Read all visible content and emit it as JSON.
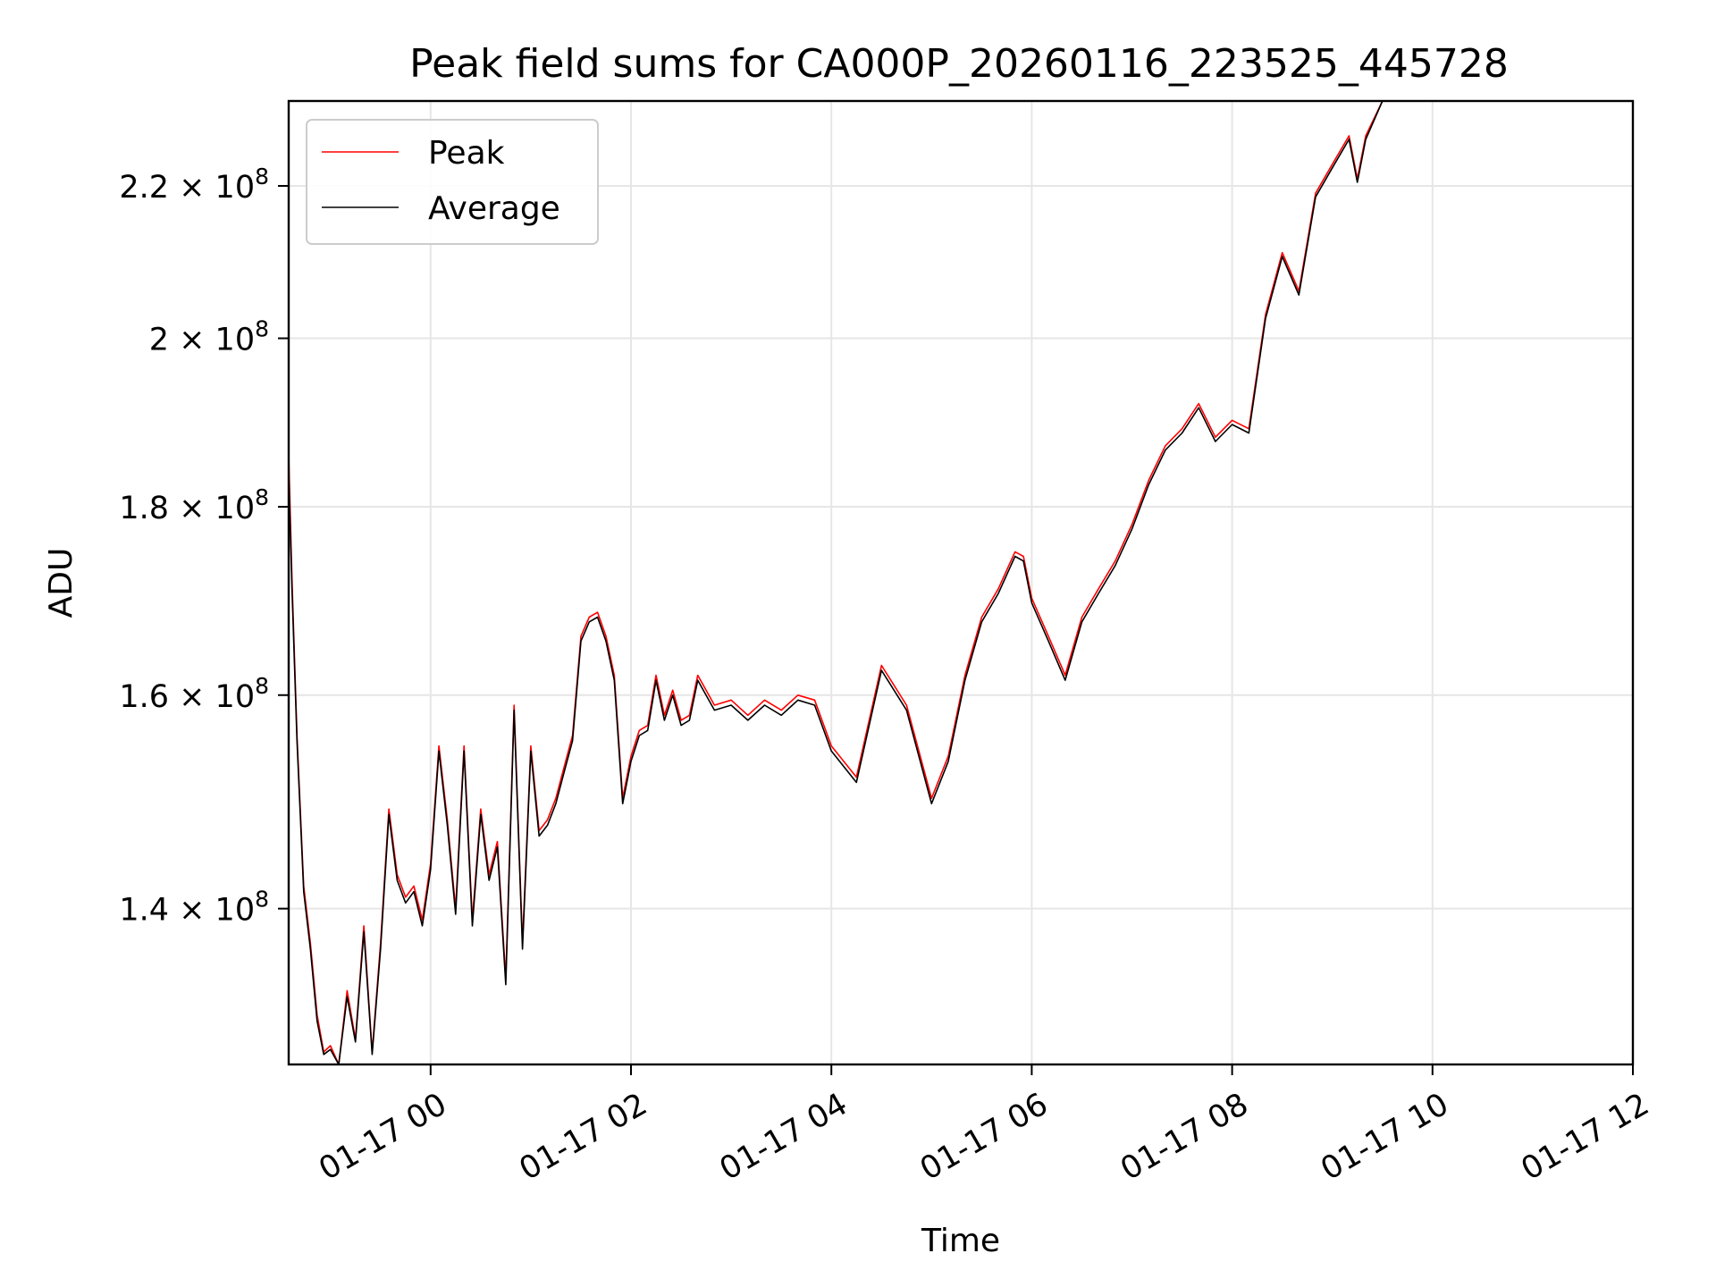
{
  "chart_data": {
    "type": "line",
    "title": "Peak field sums for CA000P_20260116_223525_445728",
    "xlabel": "Time",
    "ylabel": "ADU",
    "y_scale": "log",
    "xlim": [
      "2026-01-16 22:35",
      "2026-01-17 12:00"
    ],
    "ylim": [
      127000000,
      232000000
    ],
    "grid": true,
    "legend": "top-left",
    "x_ticks": [
      {
        "t": "2026-01-17 00:00",
        "label": "01-17 00"
      },
      {
        "t": "2026-01-17 02:00",
        "label": "01-17 02"
      },
      {
        "t": "2026-01-17 04:00",
        "label": "01-17 04"
      },
      {
        "t": "2026-01-17 06:00",
        "label": "01-17 06"
      },
      {
        "t": "2026-01-17 08:00",
        "label": "01-17 08"
      },
      {
        "t": "2026-01-17 10:00",
        "label": "01-17 10"
      },
      {
        "t": "2026-01-17 12:00",
        "label": "01-17 12"
      }
    ],
    "y_ticks": [
      {
        "v": 140000000,
        "mant": "1.4",
        "exp": "8"
      },
      {
        "v": 160000000,
        "mant": "1.6",
        "exp": "8"
      },
      {
        "v": 180000000,
        "mant": "1.8",
        "exp": "8"
      },
      {
        "v": 200000000,
        "mant": "2",
        "exp": "8"
      },
      {
        "v": 220000000,
        "mant": "2.2",
        "exp": "8"
      }
    ],
    "series": [
      {
        "name": "Peak",
        "color": "#ff0000",
        "x": [
          "2026-01-16 22:35",
          "2026-01-16 22:37",
          "2026-01-16 22:40",
          "2026-01-16 22:44",
          "2026-01-16 22:48",
          "2026-01-16 22:52",
          "2026-01-16 22:56",
          "2026-01-16 23:00",
          "2026-01-16 23:05",
          "2026-01-16 23:10",
          "2026-01-16 23:15",
          "2026-01-16 23:20",
          "2026-01-16 23:25",
          "2026-01-16 23:30",
          "2026-01-16 23:35",
          "2026-01-16 23:40",
          "2026-01-16 23:45",
          "2026-01-16 23:50",
          "2026-01-16 23:55",
          "2026-01-17 00:00",
          "2026-01-17 00:05",
          "2026-01-17 00:10",
          "2026-01-17 00:15",
          "2026-01-17 00:20",
          "2026-01-17 00:25",
          "2026-01-17 00:30",
          "2026-01-17 00:35",
          "2026-01-17 00:40",
          "2026-01-17 00:45",
          "2026-01-17 00:50",
          "2026-01-17 00:55",
          "2026-01-17 01:00",
          "2026-01-17 01:05",
          "2026-01-17 01:10",
          "2026-01-17 01:15",
          "2026-01-17 01:20",
          "2026-01-17 01:25",
          "2026-01-17 01:30",
          "2026-01-17 01:35",
          "2026-01-17 01:40",
          "2026-01-17 01:45",
          "2026-01-17 01:50",
          "2026-01-17 01:55",
          "2026-01-17 02:00",
          "2026-01-17 02:05",
          "2026-01-17 02:10",
          "2026-01-17 02:15",
          "2026-01-17 02:20",
          "2026-01-17 02:25",
          "2026-01-17 02:30",
          "2026-01-17 02:35",
          "2026-01-17 02:40",
          "2026-01-17 02:50",
          "2026-01-17 03:00",
          "2026-01-17 03:10",
          "2026-01-17 03:20",
          "2026-01-17 03:30",
          "2026-01-17 03:40",
          "2026-01-17 03:50",
          "2026-01-17 04:00",
          "2026-01-17 04:15",
          "2026-01-17 04:30",
          "2026-01-17 04:45",
          "2026-01-17 05:00",
          "2026-01-17 05:10",
          "2026-01-17 05:20",
          "2026-01-17 05:30",
          "2026-01-17 05:40",
          "2026-01-17 05:50",
          "2026-01-17 05:55",
          "2026-01-17 06:00",
          "2026-01-17 06:10",
          "2026-01-17 06:20",
          "2026-01-17 06:30",
          "2026-01-17 06:40",
          "2026-01-17 06:50",
          "2026-01-17 07:00",
          "2026-01-17 07:10",
          "2026-01-17 07:20",
          "2026-01-17 07:30",
          "2026-01-17 07:40",
          "2026-01-17 07:50",
          "2026-01-17 08:00",
          "2026-01-17 08:10",
          "2026-01-17 08:20",
          "2026-01-17 08:30",
          "2026-01-17 08:40",
          "2026-01-17 08:50",
          "2026-01-17 09:00",
          "2026-01-17 09:10",
          "2026-01-17 09:15",
          "2026-01-17 09:20",
          "2026-01-17 09:30"
        ],
        "values": [
          186000000,
          172000000,
          156000000,
          142000000,
          137000000,
          131000000,
          128000000,
          128500000,
          127000000,
          133000000,
          129000000,
          138500000,
          128000000,
          137000000,
          149000000,
          143000000,
          141000000,
          142000000,
          139000000,
          144000000,
          155000000,
          148000000,
          140000000,
          155000000,
          139000000,
          149000000,
          143000000,
          146000000,
          134000000,
          159000000,
          137000000,
          155000000,
          147000000,
          148000000,
          150000000,
          153000000,
          156000000,
          166000000,
          168000000,
          168500000,
          166000000,
          162000000,
          150000000,
          154000000,
          156500000,
          157000000,
          162000000,
          158000000,
          160500000,
          157500000,
          158000000,
          162000000,
          159000000,
          159500000,
          158000000,
          159500000,
          158500000,
          160000000,
          159500000,
          155000000,
          152000000,
          163000000,
          159000000,
          150000000,
          154000000,
          162000000,
          168000000,
          171000000,
          175000000,
          174500000,
          170000000,
          166000000,
          162000000,
          168000000,
          171000000,
          174000000,
          178000000,
          183000000,
          187000000,
          189000000,
          192000000,
          188000000,
          190000000,
          189000000,
          203000000,
          211000000,
          206000000,
          219000000,
          223000000,
          227000000,
          221000000,
          227000000,
          232000000
        ]
      },
      {
        "name": "Average",
        "color": "#000000",
        "x": [
          "2026-01-16 22:35",
          "2026-01-16 22:37",
          "2026-01-16 22:40",
          "2026-01-16 22:44",
          "2026-01-16 22:48",
          "2026-01-16 22:52",
          "2026-01-16 22:56",
          "2026-01-16 23:00",
          "2026-01-16 23:05",
          "2026-01-16 23:10",
          "2026-01-16 23:15",
          "2026-01-16 23:20",
          "2026-01-16 23:25",
          "2026-01-16 23:30",
          "2026-01-16 23:35",
          "2026-01-16 23:40",
          "2026-01-16 23:45",
          "2026-01-16 23:50",
          "2026-01-16 23:55",
          "2026-01-17 00:00",
          "2026-01-17 00:05",
          "2026-01-17 00:10",
          "2026-01-17 00:15",
          "2026-01-17 00:20",
          "2026-01-17 00:25",
          "2026-01-17 00:30",
          "2026-01-17 00:35",
          "2026-01-17 00:40",
          "2026-01-17 00:45",
          "2026-01-17 00:50",
          "2026-01-17 00:55",
          "2026-01-17 01:00",
          "2026-01-17 01:05",
          "2026-01-17 01:10",
          "2026-01-17 01:15",
          "2026-01-17 01:20",
          "2026-01-17 01:25",
          "2026-01-17 01:30",
          "2026-01-17 01:35",
          "2026-01-17 01:40",
          "2026-01-17 01:45",
          "2026-01-17 01:50",
          "2026-01-17 01:55",
          "2026-01-17 02:00",
          "2026-01-17 02:05",
          "2026-01-17 02:10",
          "2026-01-17 02:15",
          "2026-01-17 02:20",
          "2026-01-17 02:25",
          "2026-01-17 02:30",
          "2026-01-17 02:35",
          "2026-01-17 02:40",
          "2026-01-17 02:50",
          "2026-01-17 03:00",
          "2026-01-17 03:10",
          "2026-01-17 03:20",
          "2026-01-17 03:30",
          "2026-01-17 03:40",
          "2026-01-17 03:50",
          "2026-01-17 04:00",
          "2026-01-17 04:15",
          "2026-01-17 04:30",
          "2026-01-17 04:45",
          "2026-01-17 05:00",
          "2026-01-17 05:10",
          "2026-01-17 05:20",
          "2026-01-17 05:30",
          "2026-01-17 05:40",
          "2026-01-17 05:50",
          "2026-01-17 05:55",
          "2026-01-17 06:00",
          "2026-01-17 06:10",
          "2026-01-17 06:20",
          "2026-01-17 06:30",
          "2026-01-17 06:40",
          "2026-01-17 06:50",
          "2026-01-17 07:00",
          "2026-01-17 07:10",
          "2026-01-17 07:20",
          "2026-01-17 07:30",
          "2026-01-17 07:40",
          "2026-01-17 07:50",
          "2026-01-17 08:00",
          "2026-01-17 08:10",
          "2026-01-17 08:20",
          "2026-01-17 08:30",
          "2026-01-17 08:40",
          "2026-01-17 08:50",
          "2026-01-17 09:00",
          "2026-01-17 09:10",
          "2026-01-17 09:15",
          "2026-01-17 09:20",
          "2026-01-17 09:30"
        ],
        "values": [
          184000000,
          171000000,
          155500000,
          141500000,
          136500000,
          130500000,
          127800000,
          128200000,
          127000000,
          132500000,
          128800000,
          138000000,
          127800000,
          136500000,
          148500000,
          142500000,
          140500000,
          141500000,
          138500000,
          143500000,
          154500000,
          147500000,
          139500000,
          154500000,
          138500000,
          148500000,
          142500000,
          145500000,
          133500000,
          158500000,
          136500000,
          154500000,
          146500000,
          147500000,
          149500000,
          152500000,
          155500000,
          165500000,
          167500000,
          168000000,
          165500000,
          161500000,
          149500000,
          153500000,
          156000000,
          156500000,
          161500000,
          157500000,
          160000000,
          157000000,
          157500000,
          161500000,
          158500000,
          159000000,
          157500000,
          159000000,
          158000000,
          159500000,
          159000000,
          154500000,
          151500000,
          162500000,
          158500000,
          149500000,
          153500000,
          161500000,
          167500000,
          170500000,
          174500000,
          174000000,
          169500000,
          165500000,
          161500000,
          167500000,
          170500000,
          173500000,
          177500000,
          182500000,
          186500000,
          188500000,
          191500000,
          187500000,
          189500000,
          188500000,
          202500000,
          210500000,
          205500000,
          218500000,
          222500000,
          226500000,
          220500000,
          226500000,
          232000000
        ]
      }
    ]
  }
}
